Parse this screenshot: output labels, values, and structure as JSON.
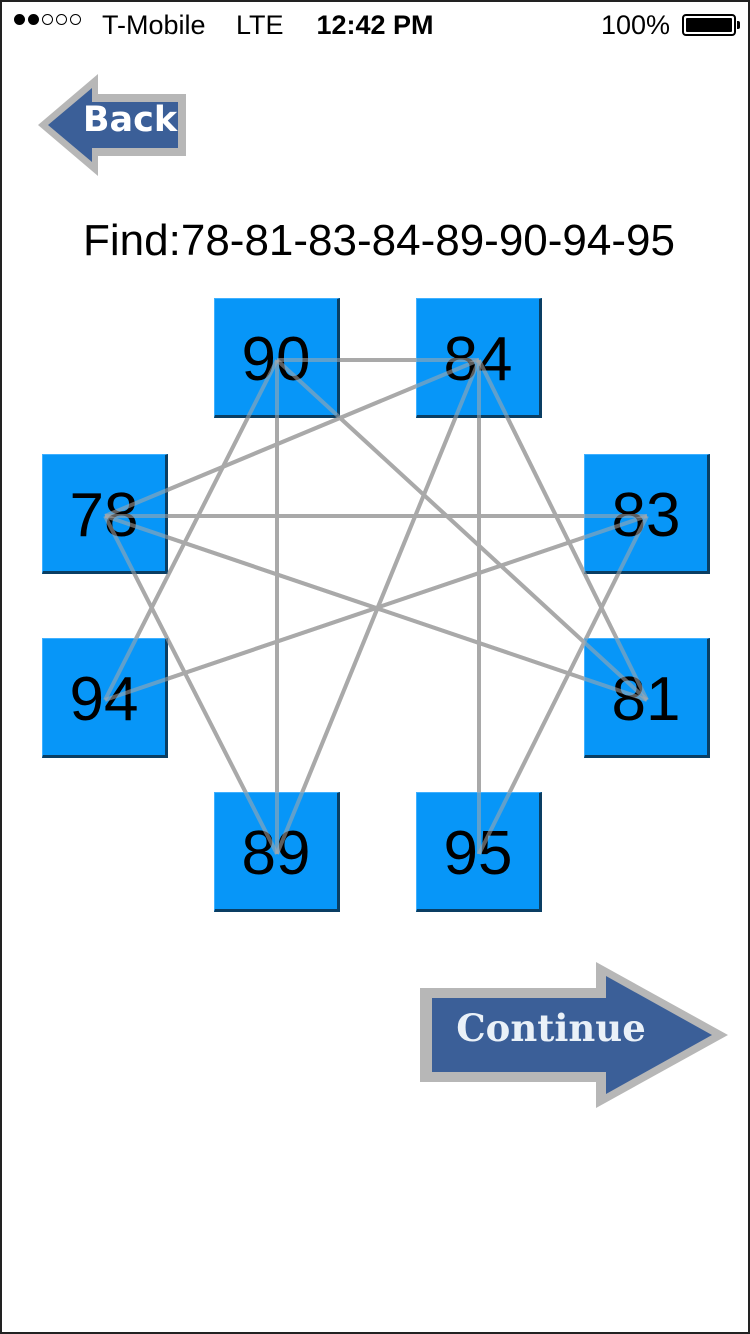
{
  "status_bar": {
    "carrier": "T-Mobile",
    "network": "LTE",
    "time": "12:42 PM",
    "battery_percent": "100%",
    "signal_bars_filled": 2,
    "signal_bars_total": 5
  },
  "back_button": {
    "label": "Back"
  },
  "find": {
    "label": "Find:78-81-83-84-89-90-94-95"
  },
  "tiles": [
    {
      "id": "90",
      "label": "90"
    },
    {
      "id": "84",
      "label": "84"
    },
    {
      "id": "78",
      "label": "78"
    },
    {
      "id": "83",
      "label": "83"
    },
    {
      "id": "94",
      "label": "94"
    },
    {
      "id": "81",
      "label": "81"
    },
    {
      "id": "89",
      "label": "89"
    },
    {
      "id": "95",
      "label": "95"
    }
  ],
  "connections": [
    [
      "90",
      "84"
    ],
    [
      "90",
      "94"
    ],
    [
      "90",
      "89"
    ],
    [
      "90",
      "81"
    ],
    [
      "84",
      "78"
    ],
    [
      "84",
      "89"
    ],
    [
      "84",
      "95"
    ],
    [
      "84",
      "81"
    ],
    [
      "78",
      "83"
    ],
    [
      "78",
      "81"
    ],
    [
      "78",
      "89"
    ],
    [
      "83",
      "94"
    ],
    [
      "83",
      "95"
    ]
  ],
  "continue_button": {
    "label": "Continue"
  },
  "colors": {
    "tile_fill": "#0796f8",
    "line": "#a9a9a9",
    "arrow_fill": "#3b5f98",
    "arrow_border": "#b7b7b7"
  }
}
